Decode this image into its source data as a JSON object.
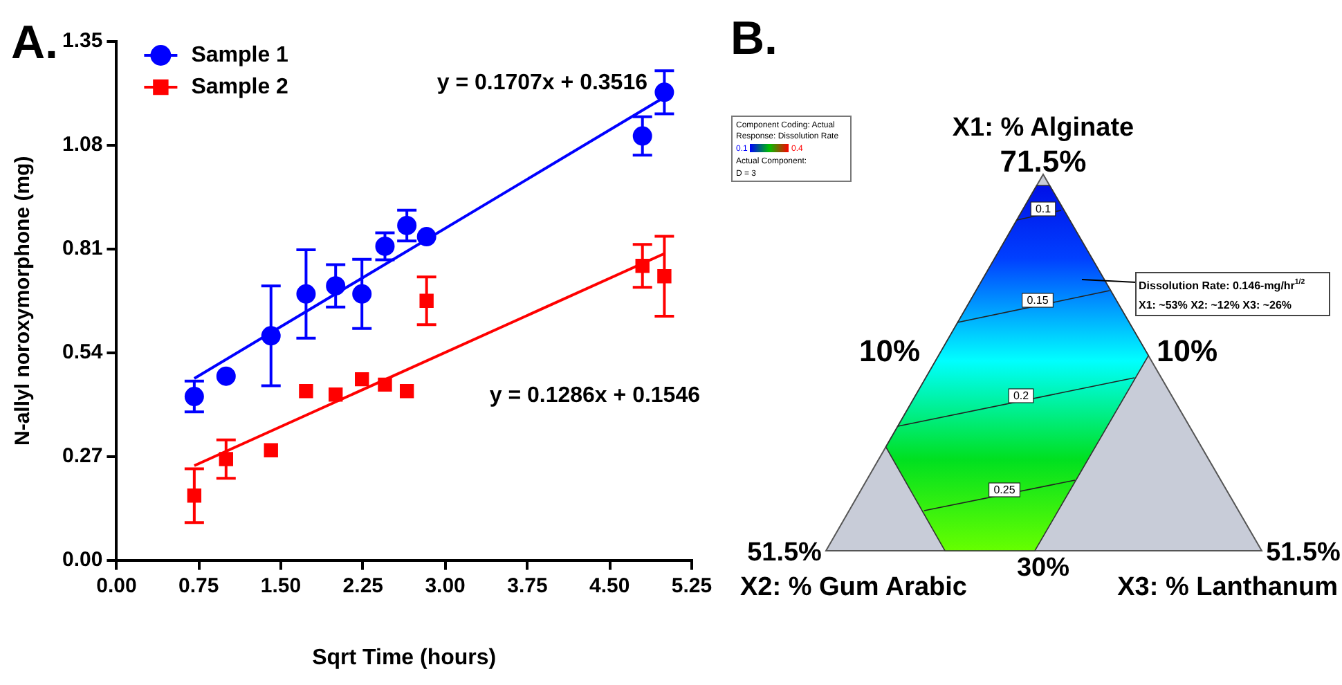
{
  "chart_data": [
    {
      "type": "scatter",
      "title": "A.",
      "xlabel": "Sqrt Time (hours)",
      "ylabel": "N-allyl noroxymorphone (mg)",
      "xlim": [
        0,
        5.25
      ],
      "ylim": [
        0,
        1.35
      ],
      "xticks": [
        {
          "value": 0,
          "label": "0.00"
        },
        {
          "value": 0.75,
          "label": "0.75"
        },
        {
          "value": 1.5,
          "label": "1.50"
        },
        {
          "value": 2.25,
          "label": "2.25"
        },
        {
          "value": 3,
          "label": "3.00"
        },
        {
          "value": 3.75,
          "label": "3.75"
        },
        {
          "value": 4.5,
          "label": "4.50"
        },
        {
          "value": 5.25,
          "label": "5.25"
        }
      ],
      "yticks": [
        {
          "value": 0,
          "label": "0.00"
        },
        0.27,
        0.54,
        0.81,
        1.08,
        1.35
      ],
      "legend": "top left",
      "series": [
        {
          "name": "Sample 1",
          "type": "scatter",
          "marker": "circle",
          "color": "#0000ff",
          "x": [
            0.71,
            1,
            1.41,
            1.73,
            2,
            2.24,
            2.45,
            2.65,
            2.83,
            4.8,
            5
          ],
          "values": [
            0.426,
            0.479,
            0.584,
            0.693,
            0.714,
            0.693,
            0.817,
            0.871,
            0.842,
            1.104,
            1.218
          ],
          "errors": [
            0.04,
            null,
            0.13,
            0.115,
            0.055,
            0.09,
            0.035,
            0.04,
            null,
            0.05,
            0.056
          ]
        },
        {
          "name": "Sample 2",
          "type": "scatter",
          "marker": "square",
          "color": "#ff0000",
          "x": [
            0.71,
            1,
            1.41,
            1.73,
            2,
            2.24,
            2.45,
            2.65,
            2.83,
            4.8,
            5
          ],
          "values": [
            0.168,
            0.263,
            0.286,
            0.44,
            0.431,
            0.471,
            0.457,
            0.44,
            0.675,
            0.766,
            0.739
          ],
          "errors": [
            0.07,
            0.05,
            null,
            null,
            null,
            null,
            null,
            null,
            0.062,
            0.056,
            0.104
          ]
        },
        {
          "type": "line",
          "marker": "none",
          "color": "#0000ff",
          "x": [
            0.71,
            5
          ],
          "values": [
            0.473,
            1.205
          ]
        },
        {
          "type": "line",
          "marker": "none",
          "color": "#ff0000",
          "x": [
            0.71,
            5
          ],
          "values": [
            0.246,
            0.798
          ]
        }
      ],
      "annotations": [
        "y = 0.1707x + 0.3516",
        "y = 0.1286x + 0.1546"
      ]
    },
    {
      "type": "other",
      "title": "B.",
      "annotations": [
        "X1: % Alginate",
        "71.5%",
        "10%",
        "10%",
        "51.5%",
        "X2: % Gum Arabic",
        "30%",
        "51.5%",
        "X3: % Lanthanum",
        "Component Coding: Actual",
        "Response: Dissolution Rate",
        "0.1",
        "0.4",
        "Actual Component:",
        "D = 3",
        "0.1",
        "0.15",
        "0.2",
        "0.25",
        "Dissolution Rate: 0.146-mg/hr$^{1/2}$",
        "X1: ~53%   X2: ~12%   X3: ~26%"
      ]
    }
  ]
}
